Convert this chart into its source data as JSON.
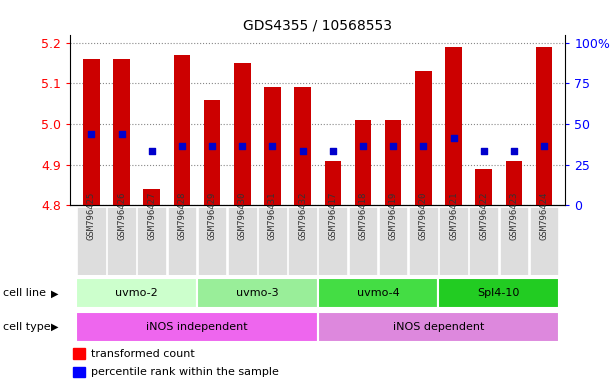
{
  "title": "GDS4355 / 10568553",
  "samples": [
    "GSM796425",
    "GSM796426",
    "GSM796427",
    "GSM796428",
    "GSM796429",
    "GSM796430",
    "GSM796431",
    "GSM796432",
    "GSM796417",
    "GSM796418",
    "GSM796419",
    "GSM796420",
    "GSM796421",
    "GSM796422",
    "GSM796423",
    "GSM796424"
  ],
  "transformed_count": [
    5.16,
    5.16,
    4.84,
    5.17,
    5.06,
    5.15,
    5.09,
    5.09,
    4.91,
    5.01,
    5.01,
    5.13,
    5.19,
    4.89,
    4.91,
    5.19
  ],
  "percentile_rank_value": [
    4.975,
    4.975,
    4.935,
    4.945,
    4.945,
    4.945,
    4.945,
    4.935,
    4.935,
    4.945,
    4.945,
    4.945,
    4.965,
    4.935,
    4.935,
    4.945
  ],
  "cell_lines": [
    {
      "label": "uvmo-2",
      "start": 0,
      "end": 4,
      "color": "#ccffcc"
    },
    {
      "label": "uvmo-3",
      "start": 4,
      "end": 8,
      "color": "#99ee99"
    },
    {
      "label": "uvmo-4",
      "start": 8,
      "end": 12,
      "color": "#44dd44"
    },
    {
      "label": "Spl4-10",
      "start": 12,
      "end": 16,
      "color": "#22cc22"
    }
  ],
  "cell_types": [
    {
      "label": "iNOS independent",
      "start": 0,
      "end": 8,
      "color": "#ee66ee"
    },
    {
      "label": "iNOS dependent",
      "start": 8,
      "end": 16,
      "color": "#dd88dd"
    }
  ],
  "ymin": 4.8,
  "ymax": 5.22,
  "yticks": [
    4.8,
    4.9,
    5.0,
    5.1,
    5.2
  ],
  "pct_labels": [
    "0",
    "25",
    "50",
    "75",
    "100%"
  ],
  "bar_color": "#cc0000",
  "dot_color": "#0000cc",
  "bar_bottom": 4.8,
  "bg_color": "#ffffff"
}
